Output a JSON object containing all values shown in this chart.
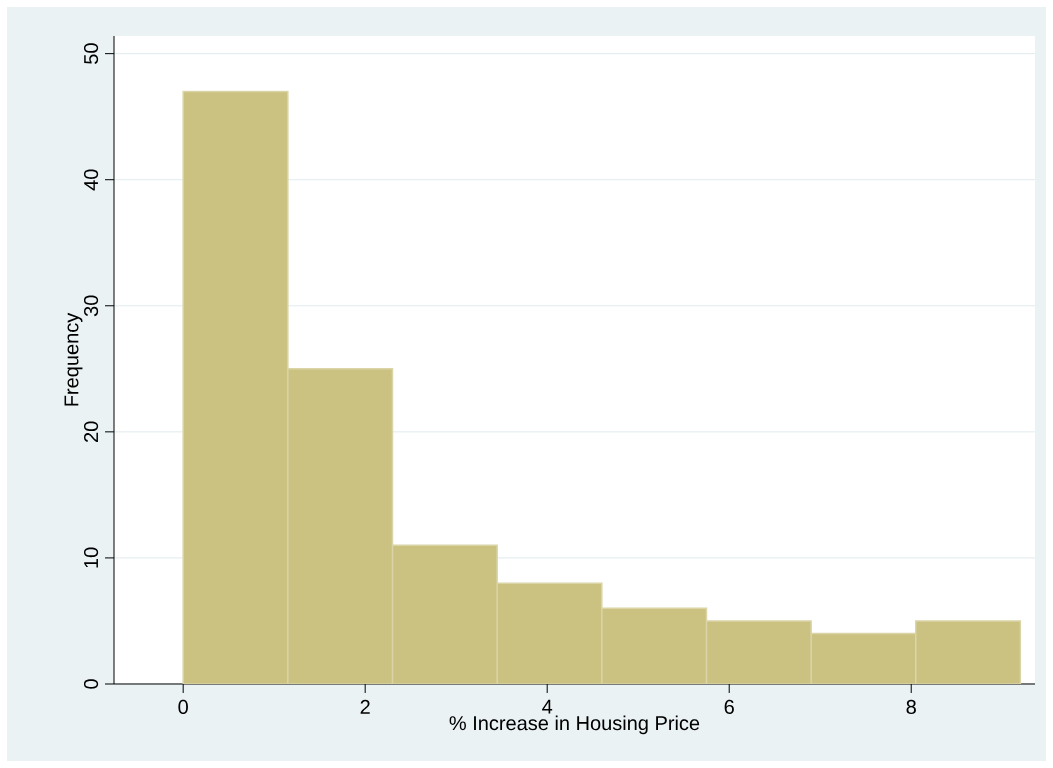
{
  "chart_data": {
    "type": "histogram",
    "xlabel": "% Increase in Housing Price",
    "ylabel": "Frequency",
    "bins": [
      0,
      1.15,
      2.3,
      3.45,
      4.6,
      5.75,
      6.9,
      8.05,
      9.2
    ],
    "values": [
      47,
      25,
      11,
      8,
      6,
      5,
      4,
      5
    ],
    "color": "#cbc282",
    "xlim": [
      -0.76,
      9.36
    ],
    "ylim": [
      0,
      51.4
    ],
    "xticks": [
      0,
      2,
      4,
      6,
      8
    ],
    "yticks": [
      0,
      10,
      20,
      30,
      40,
      50
    ],
    "grid": "y"
  }
}
